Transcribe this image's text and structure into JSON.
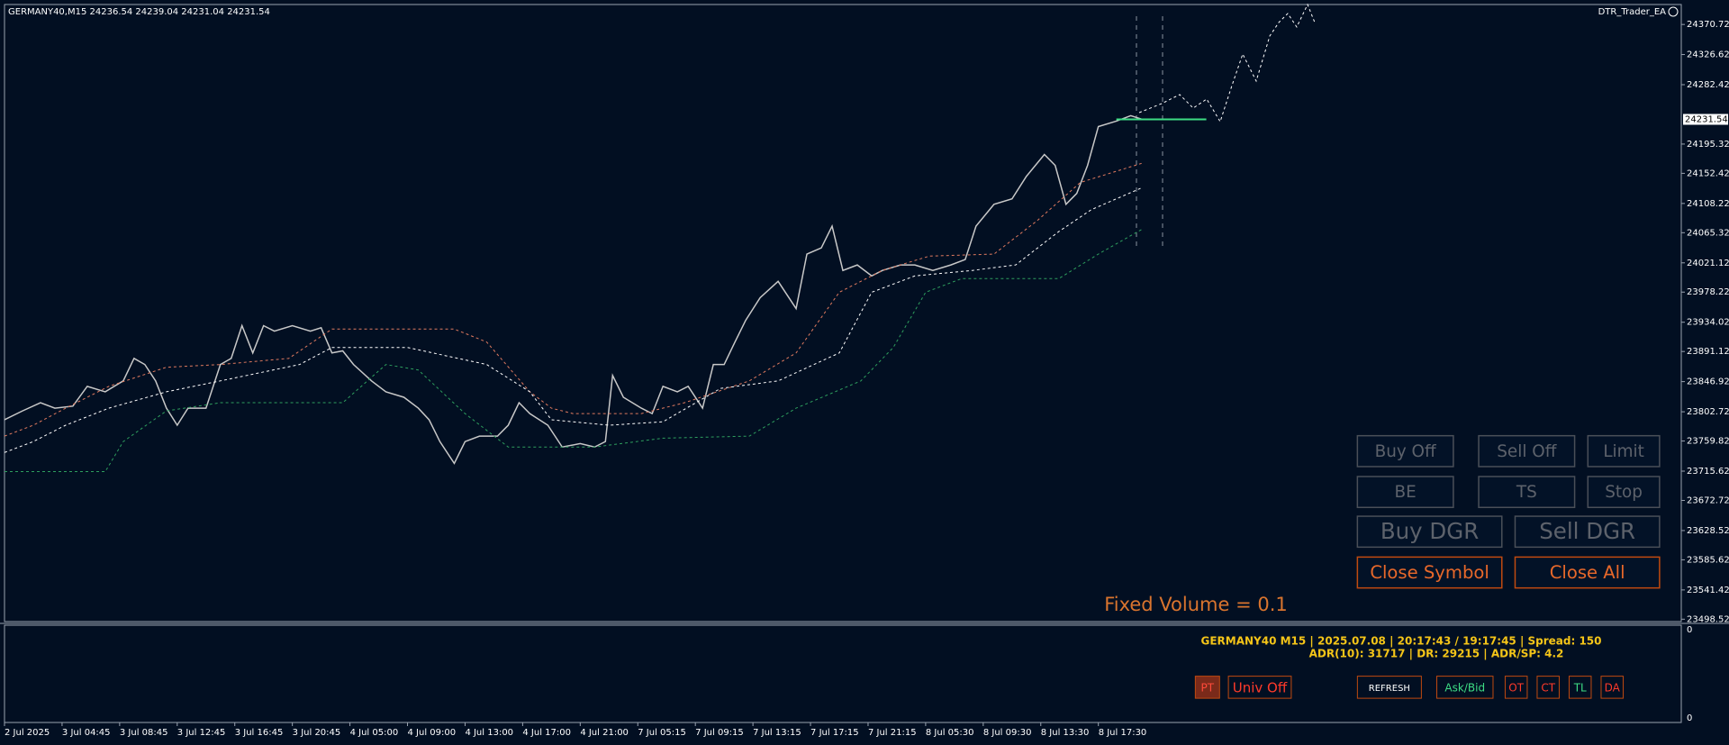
{
  "header": {
    "symbol_line": "GERMANY40,M15  24236.54 24239.04 24231.04 24231.54",
    "ea_name": "DTR_Trader_EA"
  },
  "chart_data": {
    "type": "line",
    "xlim": [
      0,
      466
    ],
    "ylim": [
      23495,
      24400
    ],
    "xticks": [
      {
        "value": 0,
        "label": "2 Jul 2025"
      },
      {
        "value": 16,
        "label": "3 Jul 04:45"
      },
      {
        "value": 32,
        "label": "3 Jul 08:45"
      },
      {
        "value": 48,
        "label": "3 Jul 12:45"
      },
      {
        "value": 64,
        "label": "3 Jul 16:45"
      },
      {
        "value": 80,
        "label": "3 Jul 20:45"
      },
      {
        "value": 96,
        "label": "4 Jul 05:00"
      },
      {
        "value": 112,
        "label": "4 Jul 09:00"
      },
      {
        "value": 128,
        "label": "4 Jul 13:00"
      },
      {
        "value": 144,
        "label": "4 Jul 17:00"
      },
      {
        "value": 160,
        "label": "4 Jul 21:00"
      },
      {
        "value": 176,
        "label": "7 Jul 05:15"
      },
      {
        "value": 192,
        "label": "7 Jul 09:15"
      },
      {
        "value": 208,
        "label": "7 Jul 13:15"
      },
      {
        "value": 224,
        "label": "7 Jul 17:15"
      },
      {
        "value": 240,
        "label": "7 Jul 21:15"
      },
      {
        "value": 256,
        "label": "8 Jul 05:30"
      },
      {
        "value": 272,
        "label": "8 Jul 09:30"
      },
      {
        "value": 288,
        "label": "8 Jul 13:30"
      },
      {
        "value": 304,
        "label": "8 Jul 17:30"
      }
    ],
    "yticks": [
      24370.72,
      24326.62,
      24282.42,
      24195.32,
      24152.42,
      24108.22,
      24065.32,
      24021.12,
      23978.22,
      23934.02,
      23891.12,
      23846.92,
      23802.72,
      23759.82,
      23715.62,
      23672.72,
      23628.52,
      23585.62,
      23541.42,
      23498.52
    ],
    "series": [
      {
        "color": "#c8c8c8",
        "dash": false,
        "x": [
          0,
          5,
          10,
          14,
          19,
          23,
          28,
          33,
          36,
          39,
          42,
          45,
          48,
          51,
          56,
          60,
          63,
          66,
          69,
          72,
          75,
          80,
          85,
          88,
          91,
          94,
          97,
          102,
          106,
          111,
          115,
          118,
          121,
          125,
          128,
          132,
          137,
          140,
          143,
          146,
          151,
          155,
          160,
          164,
          167,
          169,
          172,
          177,
          180,
          183,
          187,
          190,
          194,
          197,
          200,
          203,
          206,
          210,
          215,
          220,
          223,
          227,
          230,
          233,
          237,
          241,
          244,
          249,
          253,
          258,
          263,
          267,
          270,
          275,
          280,
          284,
          289,
          292,
          295,
          298,
          301,
          304,
          309,
          313,
          316
        ],
        "values": [
          23791,
          23804,
          23816,
          23808,
          23811,
          23840,
          23832,
          23848,
          23881,
          23872,
          23848,
          23808,
          23783,
          23808,
          23808,
          23872,
          23881,
          23929,
          23889,
          23929,
          23921,
          23929,
          23921,
          23926,
          23889,
          23892,
          23872,
          23848,
          23832,
          23824,
          23808,
          23791,
          23759,
          23727,
          23759,
          23767,
          23767,
          23783,
          23816,
          23800,
          23783,
          23751,
          23756,
          23751,
          23759,
          23856,
          23824,
          23808,
          23800,
          23840,
          23832,
          23840,
          23808,
          23872,
          23872,
          23905,
          23937,
          23970,
          23994,
          23954,
          24034,
          24043,
          24075,
          24010,
          24018,
          24002,
          24010,
          24018,
          24018,
          24010,
          24018,
          24026,
          24075,
          24107,
          24115,
          24148,
          24180,
          24164,
          24107,
          24123,
          24164,
          24221,
          24229,
          24237,
          24232
        ]
      },
      {
        "color": "#e07a5f",
        "dash": true,
        "x": [
          0,
          8,
          17,
          29,
          45,
          60,
          79,
          91,
          125,
          134,
          146,
          152,
          158,
          177,
          189,
          207,
          220,
          232,
          244,
          257,
          275,
          287,
          299,
          316
        ],
        "values": [
          23767,
          23783,
          23808,
          23840,
          23868,
          23872,
          23881,
          23924,
          23924,
          23905,
          23832,
          23808,
          23800,
          23800,
          23816,
          23848,
          23889,
          23978,
          24010,
          24031,
          24034,
          24083,
          24139,
          24167
        ]
      },
      {
        "color": "#ffffff",
        "dash": true,
        "x": [
          0,
          8,
          17,
          29,
          45,
          60,
          82,
          91,
          112,
          134,
          146,
          152,
          168,
          183,
          199,
          215,
          232,
          241,
          253,
          269,
          281,
          293,
          302,
          316
        ],
        "values": [
          23743,
          23759,
          23783,
          23808,
          23832,
          23848,
          23872,
          23897,
          23897,
          23872,
          23832,
          23791,
          23783,
          23788,
          23837,
          23848,
          23889,
          23978,
          24002,
          24010,
          24018,
          24067,
          24099,
          24131
        ]
      },
      {
        "color": "#2e9e5e",
        "dash": true,
        "x": [
          0,
          28,
          33,
          45,
          60,
          94,
          106,
          115,
          128,
          140,
          164,
          183,
          207,
          220,
          238,
          247,
          256,
          266,
          293,
          304,
          316
        ],
        "values": [
          23715,
          23715,
          23759,
          23804,
          23816,
          23816,
          23872,
          23864,
          23800,
          23751,
          23751,
          23764,
          23767,
          23808,
          23848,
          23897,
          23978,
          23998,
          23998,
          24034,
          24070
        ]
      }
    ],
    "bid_line": {
      "value": 24231.54,
      "color": "#3ddc84",
      "x": [
        309,
        334
      ]
    }
  },
  "panel": {
    "buttons": [
      "Buy Off",
      "Sell Off",
      "Limit",
      "BE",
      "TS",
      "Stop",
      "Buy DGR",
      "Sell DGR",
      "Close Symbol",
      "Close All"
    ],
    "fixed_volume": "Fixed Volume = 0.1"
  },
  "info": {
    "line1": "GERMANY40 M15 | 2025.07.08 | 20:17:43 / 19:17:45 | Spread: 150",
    "line2": "ADR(10): 31717 | DR: 29215 | ADR/SP: 4.2"
  },
  "toolbar": [
    "PT",
    "Univ Off",
    "REFRESH",
    "Ask/Bid",
    "OT",
    "CT",
    "TL",
    "DA"
  ],
  "indicator_labels": [
    "0",
    "0"
  ]
}
